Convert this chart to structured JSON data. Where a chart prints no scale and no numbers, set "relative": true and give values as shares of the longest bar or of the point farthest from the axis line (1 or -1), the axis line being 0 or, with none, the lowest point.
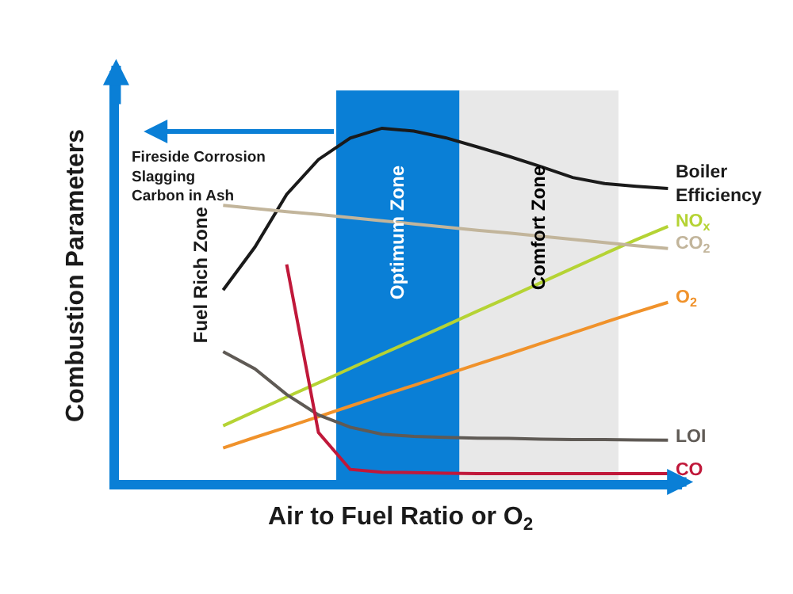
{
  "chart_data": {
    "type": "line",
    "relative": true,
    "xlabel": "Air to Fuel Ratio or O$_{2}$",
    "ylabel": "Combustion Parameters",
    "tick_labels": false,
    "grid": false,
    "marker": "none",
    "line_style": "solid",
    "categories": [
      null,
      null,
      null,
      null,
      null,
      null,
      null,
      null,
      null,
      null,
      null,
      null,
      null,
      null,
      null,
      null,
      null,
      null
    ],
    "series": [
      {
        "name": "Boiler\nEfficiency",
        "color": "#1a1a1a",
        "values": [
          null,
          null,
          null,
          0.54,
          0.662,
          0.812,
          0.911,
          0.972,
          1.0,
          0.992,
          0.973,
          0.947,
          0.92,
          0.891,
          0.86,
          0.843,
          0.835,
          0.829
        ]
      },
      {
        "name": "NO$_{x}$",
        "color": "#b5d334",
        "values": [
          null,
          null,
          null,
          0.154,
          0.195,
          0.236,
          0.276,
          0.317,
          0.358,
          0.398,
          0.439,
          0.48,
          0.52,
          0.561,
          0.602,
          0.643,
          0.683,
          0.721
        ]
      },
      {
        "name": "CO$_{2}$",
        "color": "#c2b59b",
        "values": [
          null,
          null,
          null,
          0.781,
          0.772,
          0.763,
          0.755,
          0.746,
          0.737,
          0.728,
          0.719,
          0.71,
          0.702,
          0.693,
          0.684,
          0.675,
          0.666,
          0.658
        ]
      },
      {
        "name": "O$_{2}$",
        "color": "#f0922b",
        "values": [
          null,
          null,
          null,
          0.091,
          0.121,
          0.15,
          0.18,
          0.21,
          0.24,
          0.269,
          0.299,
          0.329,
          0.358,
          0.388,
          0.418,
          0.448,
          0.477,
          0.505
        ]
      },
      {
        "name": "LOI",
        "color": "#5f5a55",
        "values": [
          null,
          null,
          null,
          0.365,
          0.316,
          0.243,
          0.185,
          0.15,
          0.13,
          0.124,
          0.121,
          0.119,
          0.118,
          0.116,
          0.115,
          0.115,
          0.114,
          0.113
        ]
      },
      {
        "name": "CO",
        "color": "#c0183a",
        "values": [
          null,
          null,
          null,
          null,
          null,
          0.613,
          0.135,
          0.03,
          0.022,
          0.021,
          0.019,
          0.018,
          0.018,
          0.018,
          0.018,
          0.018,
          0.018,
          0.018
        ]
      }
    ],
    "annotations": [
      "Fireside Corrosion\nSlagging\nCarbon in Ash",
      "Fuel Rich Zone",
      "Optimum Zone",
      "Comfort Zone"
    ]
  }
}
